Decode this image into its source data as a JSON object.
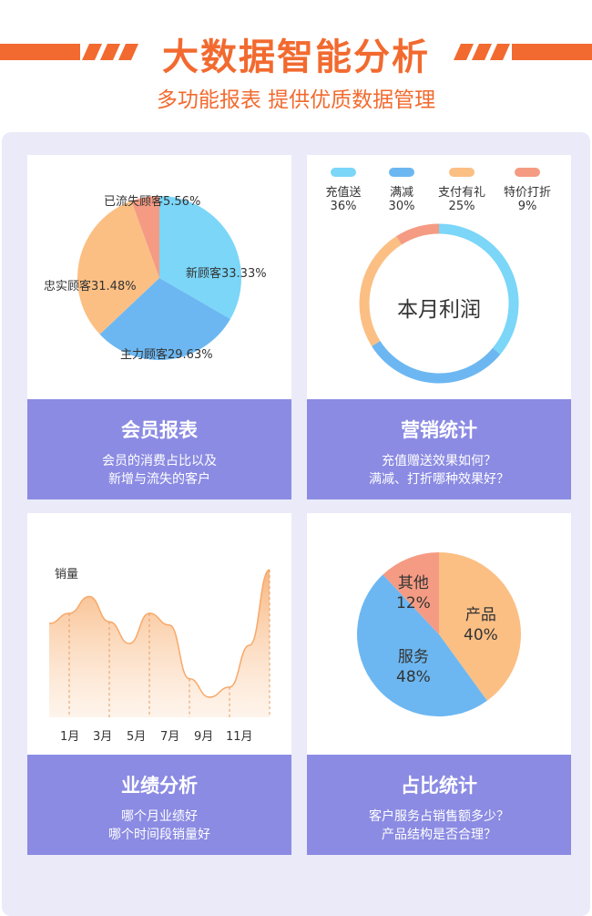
{
  "header": {
    "title": "大数据智能分析",
    "subtitle": "多功能报表 提供优质数据管理"
  },
  "colors": {
    "accent": "#f26a2f",
    "footer_bg": "#8b8be3",
    "panel_bg": "#eaeaf9",
    "cyan": "#7bd6f8",
    "blue": "#6cb7f1",
    "orange": "#fbbf84",
    "coral": "#f59b83"
  },
  "cards": {
    "member": {
      "title": "会员报表",
      "desc_line1": "会员的消费占比以及",
      "desc_line2": "新增与流失的客户"
    },
    "marketing": {
      "title": "营销统计",
      "desc_line1": "充值赠送效果如何？",
      "desc_line2": "满减、打折哪种效果好？"
    },
    "performance": {
      "title": "业绩分析",
      "desc_line1": "哪个月业绩好",
      "desc_line2": "哪个时间段销量好"
    },
    "share": {
      "title": "占比统计",
      "desc_line1": "客户服务占销售额多少？",
      "desc_line2": "产品结构是否合理？"
    }
  },
  "chart_data": [
    {
      "type": "pie",
      "labels": [
        "新顾客33.33%",
        "主力顾客29.63%",
        "忠实顾客31.48%",
        "已流失顾客5.56%"
      ],
      "values": [
        33.33,
        29.63,
        31.48,
        5.56
      ],
      "colors": [
        "#7bd6f8",
        "#6cb7f1",
        "#fbbf84",
        "#f59b83"
      ]
    },
    {
      "type": "pie",
      "center_label": "本月利润",
      "legend": [
        {
          "name": "充值送",
          "value": "36%",
          "color": "#7bd6f8"
        },
        {
          "name": "满减",
          "value": "30%",
          "color": "#6cb7f1"
        },
        {
          "name": "支付有礼",
          "value": "25%",
          "color": "#fbbf84"
        },
        {
          "name": "特价打折",
          "value": "9%",
          "color": "#f59b83"
        }
      ],
      "values": [
        36,
        30,
        25,
        9
      ]
    },
    {
      "type": "area",
      "ylabel": "销量",
      "x_tick_labels": [
        "1月",
        "3月",
        "5月",
        "7月",
        "9月",
        "11月"
      ],
      "x": [
        1,
        2,
        3,
        4,
        5,
        6,
        7,
        8,
        9,
        10,
        11,
        12
      ],
      "values": [
        56,
        62,
        72,
        57,
        44,
        62,
        55,
        23,
        12,
        18,
        43,
        88
      ],
      "ylim": [
        0,
        100
      ]
    },
    {
      "type": "pie",
      "slices": [
        {
          "name": "产品",
          "value_label": "40%",
          "value": 40,
          "color": "#fbbf84"
        },
        {
          "name": "服务",
          "value_label": "48%",
          "value": 48,
          "color": "#6cb7f1"
        },
        {
          "name": "其他",
          "value_label": "12%",
          "value": 12,
          "color": "#f59b83"
        }
      ]
    }
  ]
}
